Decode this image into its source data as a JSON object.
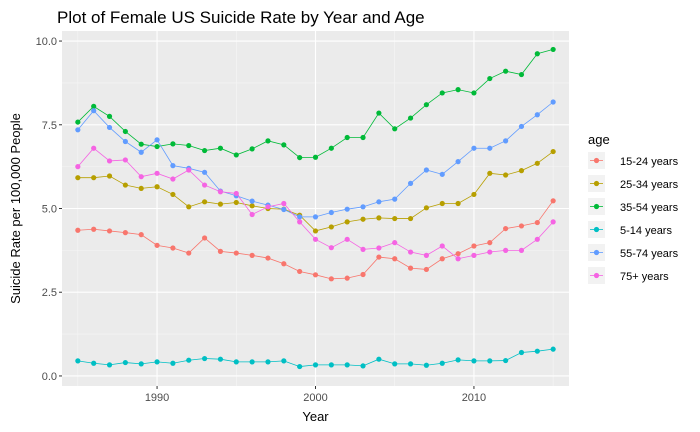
{
  "chart_data": {
    "type": "line",
    "title": "Plot of Female US Suicide Rate by Year and Age",
    "xlabel": "Year",
    "ylabel": "Suicide Rate per 100,000 People",
    "xlim": [
      1984,
      2016
    ],
    "ylim": [
      -0.3,
      10.3
    ],
    "x_ticks": [
      1990,
      2000,
      2010
    ],
    "y_ticks": [
      0.0,
      2.5,
      5.0,
      7.5,
      10.0
    ],
    "x_tick_labels": [
      "1990",
      "2000",
      "2010"
    ],
    "y_tick_labels": [
      "0.0",
      "2.5",
      "5.0",
      "7.5",
      "10.0"
    ],
    "grid": true,
    "legend_title": "age",
    "legend_position": "right",
    "x": [
      1985,
      1986,
      1987,
      1988,
      1989,
      1990,
      1991,
      1992,
      1993,
      1994,
      1995,
      1996,
      1997,
      1998,
      1999,
      2000,
      2001,
      2002,
      2003,
      2004,
      2005,
      2006,
      2007,
      2008,
      2009,
      2010,
      2011,
      2012,
      2013,
      2014,
      2015
    ],
    "series": [
      {
        "name": "15-24 years",
        "color": "#F8766D",
        "values": [
          4.35,
          4.38,
          4.33,
          4.28,
          4.22,
          3.9,
          3.82,
          3.67,
          4.12,
          3.72,
          3.67,
          3.6,
          3.52,
          3.35,
          3.12,
          3.02,
          2.9,
          2.92,
          3.03,
          3.55,
          3.5,
          3.22,
          3.18,
          3.5,
          3.65,
          3.88,
          3.98,
          4.4,
          4.48,
          4.58,
          5.23
        ]
      },
      {
        "name": "25-34 years",
        "color": "#B79F00",
        "values": [
          5.92,
          5.92,
          5.97,
          5.7,
          5.6,
          5.65,
          5.42,
          5.05,
          5.2,
          5.13,
          5.18,
          5.08,
          5.0,
          4.98,
          4.8,
          4.33,
          4.45,
          4.6,
          4.68,
          4.72,
          4.7,
          4.7,
          5.02,
          5.15,
          5.15,
          5.42,
          6.05,
          6.0,
          6.13,
          6.35,
          6.7
        ]
      },
      {
        "name": "35-54 years",
        "color": "#00BA38",
        "values": [
          7.58,
          8.05,
          7.75,
          7.3,
          6.92,
          6.85,
          6.93,
          6.88,
          6.73,
          6.8,
          6.6,
          6.78,
          7.02,
          6.9,
          6.52,
          6.53,
          6.8,
          7.12,
          7.12,
          7.85,
          7.38,
          7.7,
          8.1,
          8.45,
          8.55,
          8.45,
          8.88,
          9.1,
          9.0,
          9.62,
          9.75
        ]
      },
      {
        "name": "5-14 years",
        "color": "#00BFC4",
        "values": [
          0.45,
          0.38,
          0.33,
          0.4,
          0.36,
          0.42,
          0.38,
          0.47,
          0.52,
          0.5,
          0.42,
          0.42,
          0.42,
          0.45,
          0.28,
          0.33,
          0.33,
          0.33,
          0.3,
          0.5,
          0.36,
          0.36,
          0.32,
          0.38,
          0.48,
          0.45,
          0.45,
          0.46,
          0.7,
          0.74,
          0.8
        ]
      },
      {
        "name": "55-74 years",
        "color": "#619CFF",
        "values": [
          7.35,
          7.92,
          7.42,
          7.0,
          6.68,
          7.05,
          6.28,
          6.2,
          6.08,
          5.52,
          5.38,
          5.22,
          5.1,
          4.97,
          4.75,
          4.75,
          4.88,
          4.98,
          5.05,
          5.2,
          5.28,
          5.75,
          6.15,
          6.02,
          6.4,
          6.8,
          6.8,
          7.02,
          7.45,
          7.8,
          8.18
        ]
      },
      {
        "name": "75+ years",
        "color": "#F564E3",
        "values": [
          6.25,
          6.8,
          6.42,
          6.45,
          5.95,
          6.05,
          5.88,
          6.15,
          5.7,
          5.5,
          5.45,
          4.82,
          5.05,
          5.15,
          4.6,
          4.08,
          3.83,
          4.08,
          3.78,
          3.82,
          3.98,
          3.7,
          3.6,
          3.88,
          3.5,
          3.6,
          3.7,
          3.75,
          3.75,
          4.08,
          4.6
        ]
      }
    ]
  }
}
